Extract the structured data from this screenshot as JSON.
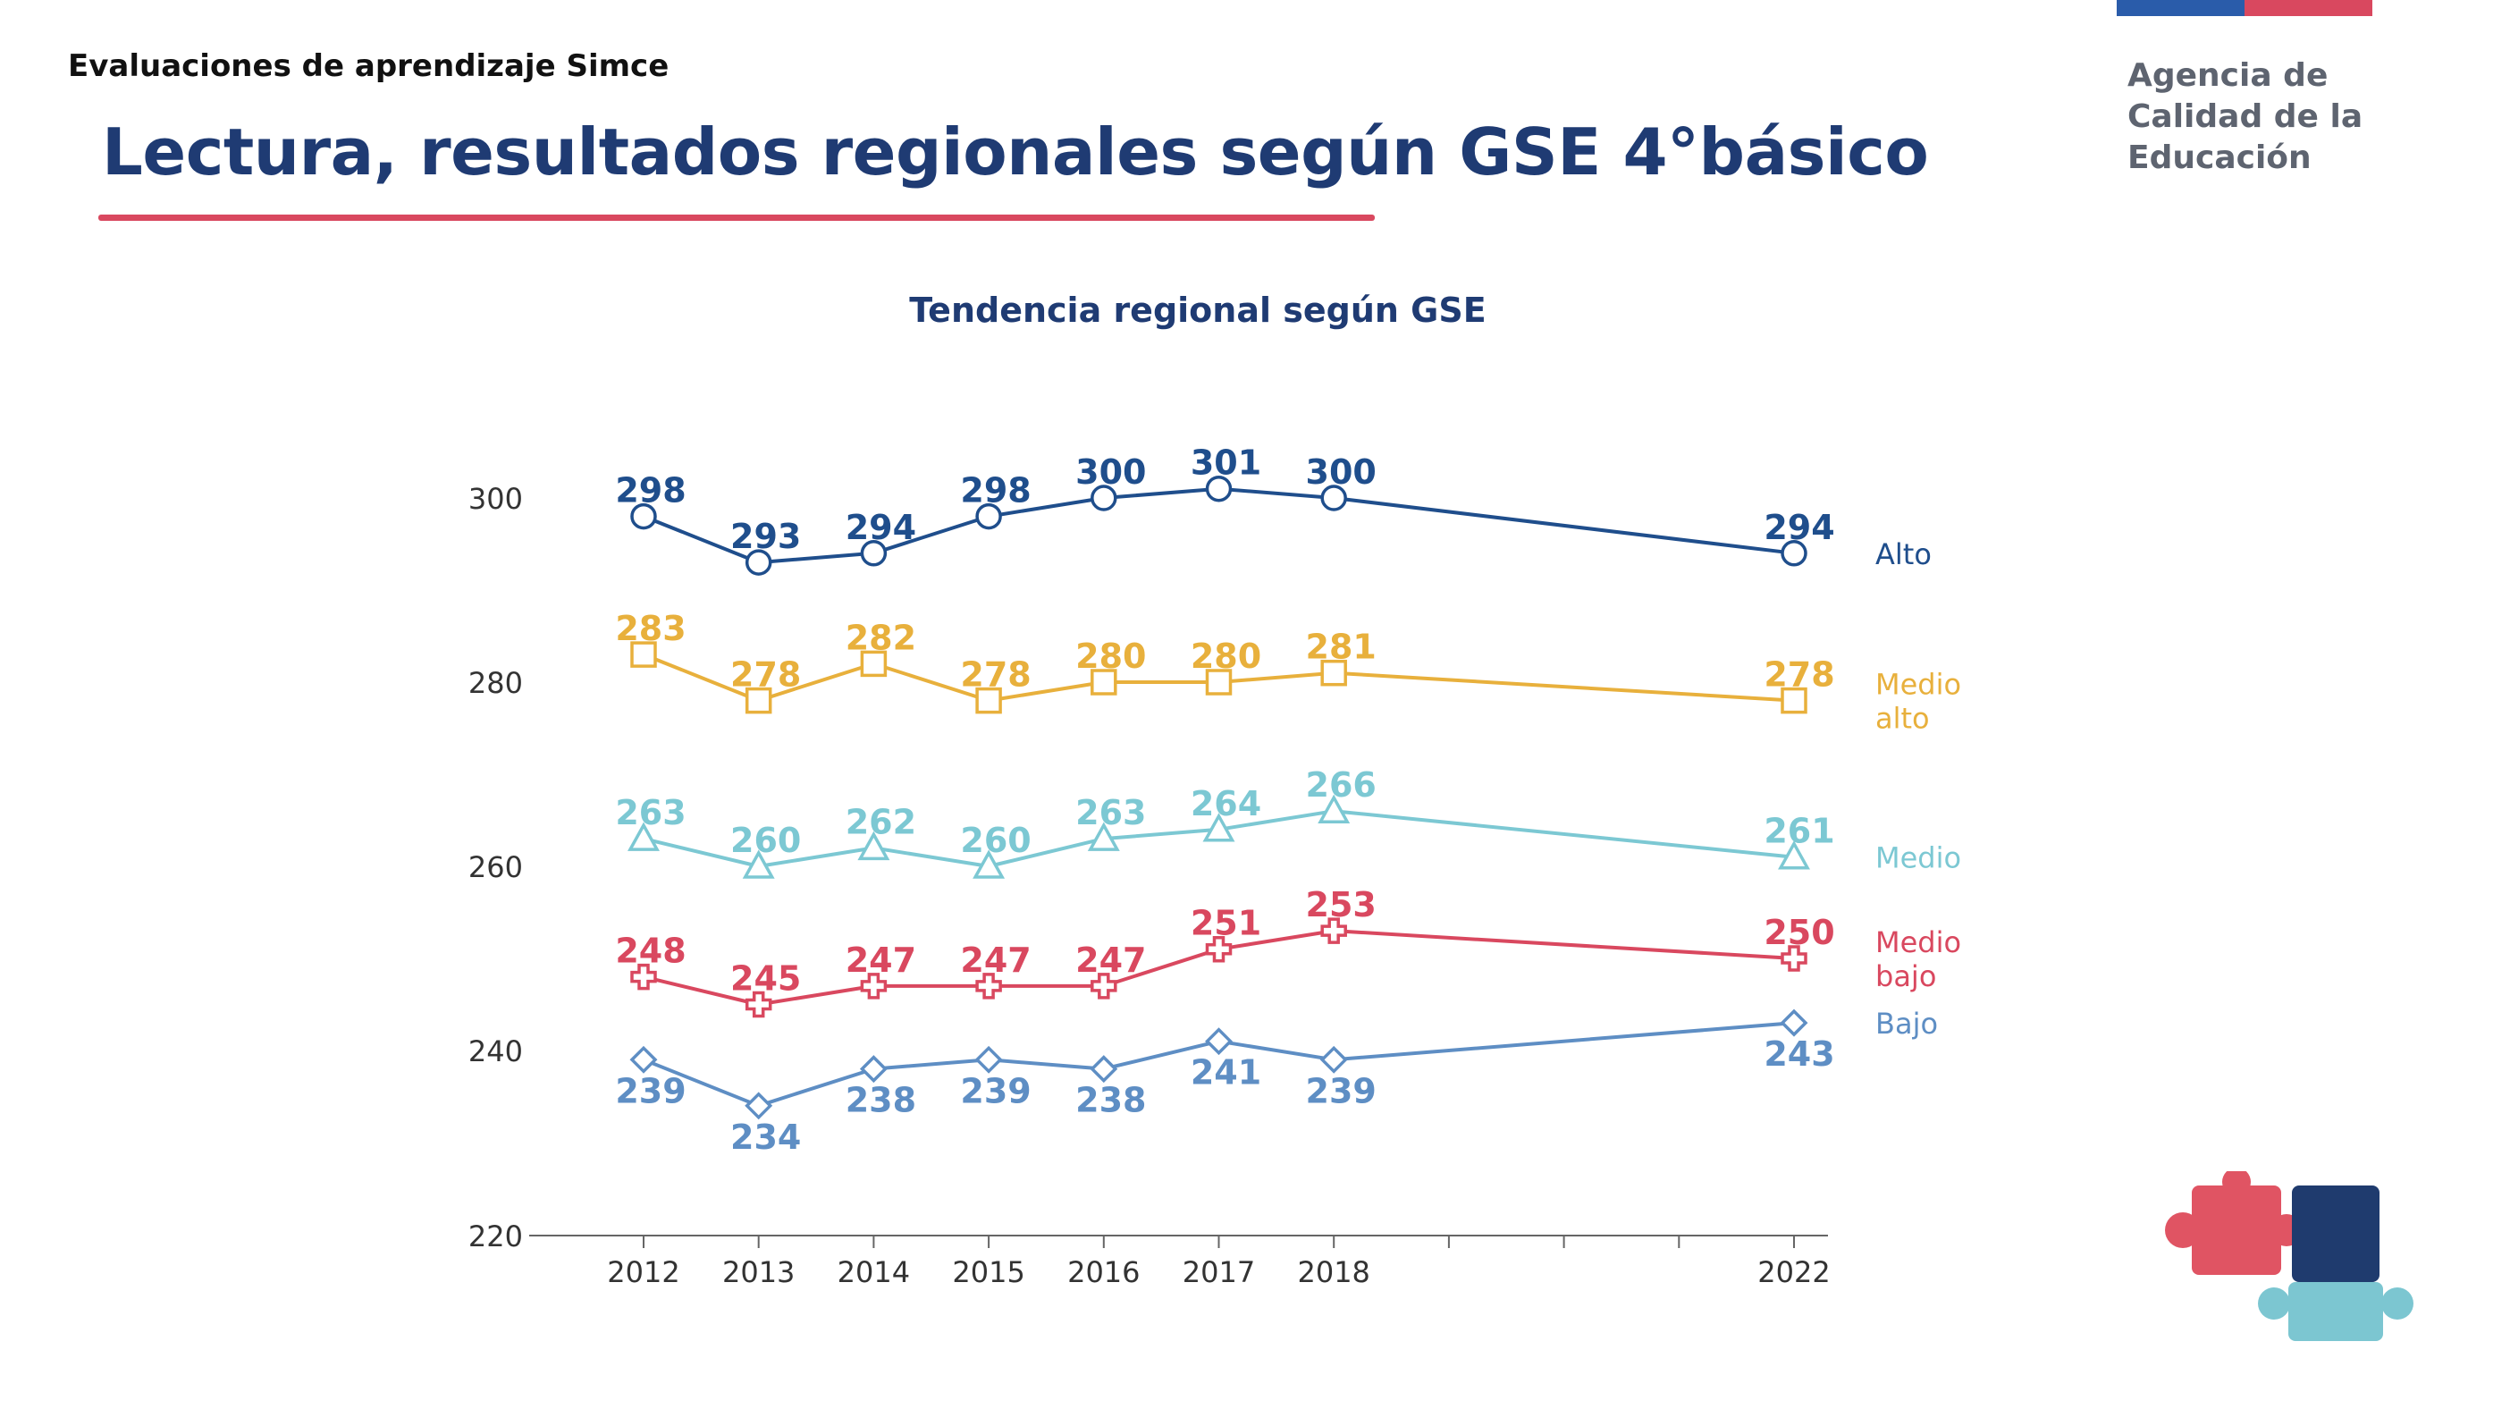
{
  "header": {
    "eyebrow": "Evaluaciones de aprendizaje Simce",
    "title": "Lectura, resultados regionales según GSE 4°básico",
    "agency_lines": [
      "Agencia de",
      "Calidad de la",
      "Educación"
    ]
  },
  "colors": {
    "title": "#1f3b73",
    "rule": "#d9485f",
    "flag_blue": "#2a5caa",
    "flag_red": "#d9485f",
    "axis": "#666666",
    "puzzle_red": "#e05463",
    "puzzle_navy": "#1f3b6e",
    "puzzle_cyan": "#7cc6d1"
  },
  "chart_data": {
    "type": "line",
    "title": "Tendencia regional según GSE",
    "xlabel": "",
    "ylabel": "",
    "x": [
      2012,
      2013,
      2014,
      2015,
      2016,
      2017,
      2018,
      2019,
      2020,
      2021,
      2022
    ],
    "x_tick_labels": [
      "2012",
      "2013",
      "2014",
      "2015",
      "2016",
      "2017",
      "2018",
      "",
      "",
      "",
      "2022"
    ],
    "ylim": [
      220,
      305
    ],
    "y_ticks": [
      220,
      240,
      260,
      280,
      300
    ],
    "grid": false,
    "legend": "inline labels at right end of each line",
    "series": [
      {
        "name": "Alto",
        "label_lines": [
          "Alto"
        ],
        "color": "#1f4e8c",
        "marker": "circle",
        "x": [
          2012,
          2013,
          2014,
          2015,
          2016,
          2017,
          2018,
          2022
        ],
        "values": [
          298,
          293,
          294,
          298,
          300,
          301,
          300,
          294
        ],
        "label_pos": "above"
      },
      {
        "name": "Medio alto",
        "label_lines": [
          "Medio",
          "alto"
        ],
        "color": "#e8b03c",
        "marker": "square",
        "x": [
          2012,
          2013,
          2014,
          2015,
          2016,
          2017,
          2018,
          2022
        ],
        "values": [
          283,
          278,
          282,
          278,
          280,
          280,
          281,
          278
        ],
        "label_pos": "above"
      },
      {
        "name": "Medio",
        "label_lines": [
          "Medio"
        ],
        "color": "#7cc8d3",
        "marker": "triangle",
        "x": [
          2012,
          2013,
          2014,
          2015,
          2016,
          2017,
          2018,
          2022
        ],
        "values": [
          263,
          260,
          262,
          260,
          263,
          264,
          266,
          261
        ],
        "label_pos": "above"
      },
      {
        "name": "Medio bajo",
        "label_lines": [
          "Medio",
          "bajo"
        ],
        "color": "#d9485f",
        "marker": "plus",
        "x": [
          2012,
          2013,
          2014,
          2015,
          2016,
          2017,
          2018,
          2022
        ],
        "values": [
          248,
          245,
          247,
          247,
          247,
          251,
          253,
          250
        ],
        "label_pos": "above"
      },
      {
        "name": "Bajo",
        "label_lines": [
          "Bajo"
        ],
        "color": "#5e8ec4",
        "marker": "diamond",
        "x": [
          2012,
          2013,
          2014,
          2015,
          2016,
          2017,
          2018,
          2022
        ],
        "values": [
          239,
          234,
          238,
          239,
          238,
          241,
          239,
          243
        ],
        "label_pos": "below"
      }
    ]
  }
}
